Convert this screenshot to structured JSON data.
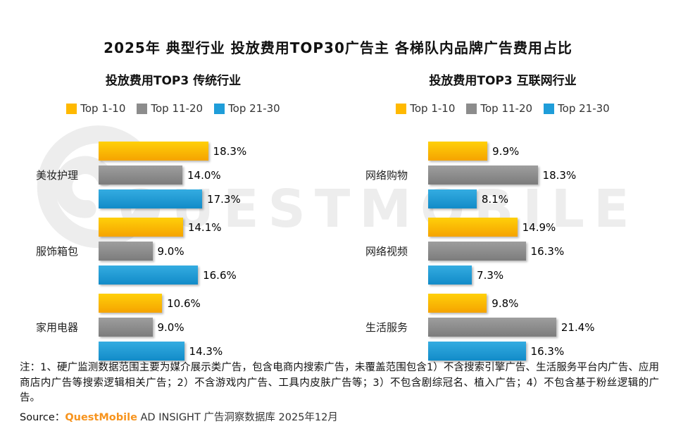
{
  "title": "2025年 典型行业 投放费用TOP30广告主 各梯队内品牌广告费用占比",
  "watermark_text": "QUESTMOBILE",
  "note": "注：1、硬广监测数据范围主要为媒介展示类广告，包含电商内搜索广告，未覆盖范围包含1）不含搜索引擎广告、生活服务平台内广告、应用商店内广告等搜索逻辑相关广告；2）不含游戏内广告、工具内皮肤广告等；3）不包含剧综冠名、植入广告；4）不包含基于粉丝逻辑的广告。",
  "source": {
    "prefix": "Source：",
    "brand": "QuestMobile",
    "rest": " AD INSIGHT 广告洞察数据库 2025年12月",
    "brand_color": "#F7941E"
  },
  "chart_data": [
    {
      "type": "bar",
      "orientation": "horizontal",
      "title": "投放费用TOP3 传统行业",
      "categories": [
        "美妆护理",
        "服饰箱包",
        "家用电器"
      ],
      "series": [
        {
          "name": "Top 1-10",
          "color": "#FFB900",
          "color_light": "#FFD00A",
          "color_dark": "#F5A300",
          "values": [
            18.3,
            14.1,
            10.6
          ],
          "labels": [
            "18.3%",
            "14.1%",
            "10.6%"
          ]
        },
        {
          "name": "Top 11-20",
          "color": "#8C8C8C",
          "color_light": "#9E9E9E",
          "color_dark": "#7C7C7C",
          "values": [
            14.0,
            9.0,
            9.0
          ],
          "labels": [
            "14.0%",
            "9.0%",
            "9.0%"
          ]
        },
        {
          "name": "Top 21-30",
          "color": "#1F9DD9",
          "color_light": "#34ACE1",
          "color_dark": "#128BC8",
          "values": [
            17.3,
            16.6,
            14.3
          ],
          "labels": [
            "17.3%",
            "16.6%",
            "14.3%"
          ]
        }
      ],
      "xlim": [
        0,
        25
      ],
      "legend_position": "top",
      "grid": false,
      "value_labels": true
    },
    {
      "type": "bar",
      "orientation": "horizontal",
      "title": "投放费用TOP3 互联网行业",
      "categories": [
        "网络购物",
        "网络视频",
        "生活服务"
      ],
      "series": [
        {
          "name": "Top 1-10",
          "color": "#FFB900",
          "color_light": "#FFD00A",
          "color_dark": "#F5A300",
          "values": [
            9.9,
            14.9,
            9.8
          ],
          "labels": [
            "9.9%",
            "14.9%",
            "9.8%"
          ]
        },
        {
          "name": "Top 11-20",
          "color": "#8C8C8C",
          "color_light": "#9E9E9E",
          "color_dark": "#7C7C7C",
          "values": [
            18.3,
            16.3,
            21.4
          ],
          "labels": [
            "18.3%",
            "16.3%",
            "21.4%"
          ]
        },
        {
          "name": "Top 21-30",
          "color": "#1F9DD9",
          "color_light": "#34ACE1",
          "color_dark": "#128BC8",
          "values": [
            8.1,
            7.3,
            16.3
          ],
          "labels": [
            "8.1%",
            "7.3%",
            "16.3%"
          ]
        }
      ],
      "xlim": [
        0,
        25
      ],
      "legend_position": "top",
      "grid": false,
      "value_labels": true
    }
  ]
}
